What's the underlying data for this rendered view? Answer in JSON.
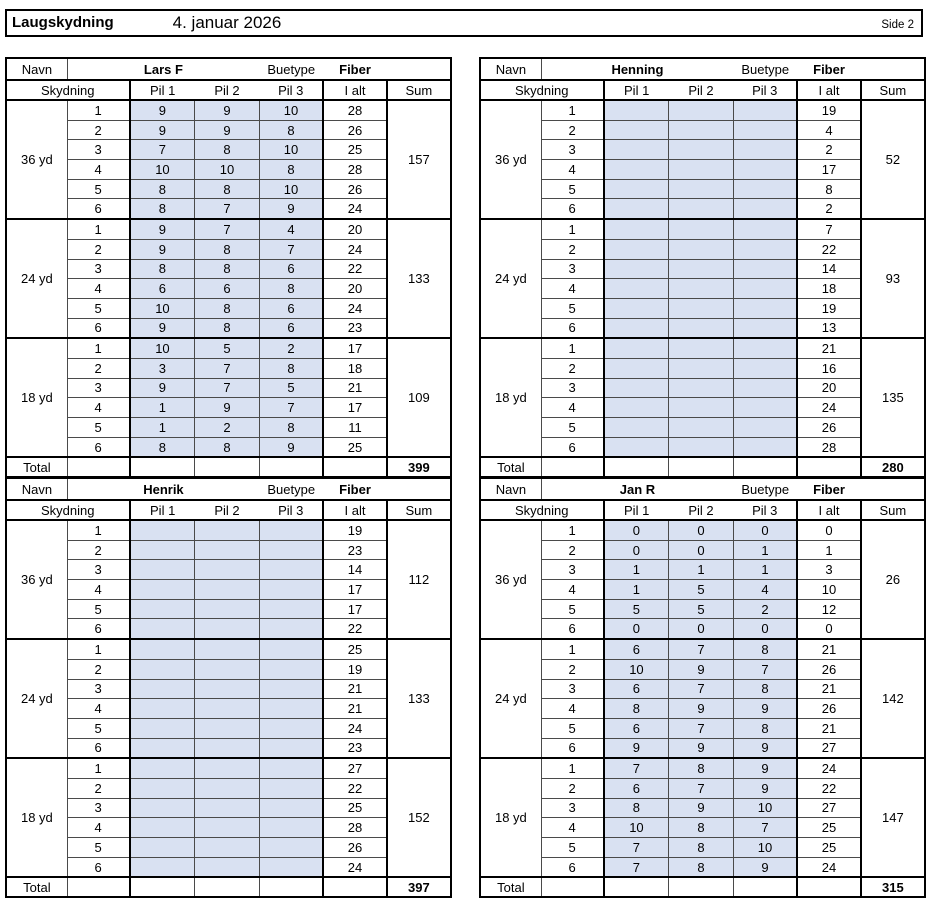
{
  "page": {
    "title": "Laugskydning",
    "date": "4. januar 2026",
    "page_label": "Side 2"
  },
  "labels": {
    "navn": "Navn",
    "buetype": "Buetype",
    "skydning": "Skydning",
    "pil1": "Pil 1",
    "pil2": "Pil 2",
    "pil3": "Pil 3",
    "ialt": "I alt",
    "sum": "Sum",
    "total": "Total"
  },
  "colors": {
    "highlight": "#d9e1f2",
    "border": "#000000"
  },
  "scorecards": [
    {
      "name": "Lars F",
      "buetype": "Fiber",
      "total": "399",
      "sections": [
        {
          "distance": "36 yd",
          "sum": "157",
          "rows": [
            {
              "skydning": "1",
              "pil1": "9",
              "pil2": "9",
              "pil3": "10",
              "ialt": "28"
            },
            {
              "skydning": "2",
              "pil1": "9",
              "pil2": "9",
              "pil3": "8",
              "ialt": "26"
            },
            {
              "skydning": "3",
              "pil1": "7",
              "pil2": "8",
              "pil3": "10",
              "ialt": "25"
            },
            {
              "skydning": "4",
              "pil1": "10",
              "pil2": "10",
              "pil3": "8",
              "ialt": "28"
            },
            {
              "skydning": "5",
              "pil1": "8",
              "pil2": "8",
              "pil3": "10",
              "ialt": "26"
            },
            {
              "skydning": "6",
              "pil1": "8",
              "pil2": "7",
              "pil3": "9",
              "ialt": "24"
            }
          ]
        },
        {
          "distance": "24 yd",
          "sum": "133",
          "rows": [
            {
              "skydning": "1",
              "pil1": "9",
              "pil2": "7",
              "pil3": "4",
              "ialt": "20"
            },
            {
              "skydning": "2",
              "pil1": "9",
              "pil2": "8",
              "pil3": "7",
              "ialt": "24"
            },
            {
              "skydning": "3",
              "pil1": "8",
              "pil2": "8",
              "pil3": "6",
              "ialt": "22"
            },
            {
              "skydning": "4",
              "pil1": "6",
              "pil2": "6",
              "pil3": "8",
              "ialt": "20"
            },
            {
              "skydning": "5",
              "pil1": "10",
              "pil2": "8",
              "pil3": "6",
              "ialt": "24"
            },
            {
              "skydning": "6",
              "pil1": "9",
              "pil2": "8",
              "pil3": "6",
              "ialt": "23"
            }
          ]
        },
        {
          "distance": "18 yd",
          "sum": "109",
          "rows": [
            {
              "skydning": "1",
              "pil1": "10",
              "pil2": "5",
              "pil3": "2",
              "ialt": "17"
            },
            {
              "skydning": "2",
              "pil1": "3",
              "pil2": "7",
              "pil3": "8",
              "ialt": "18"
            },
            {
              "skydning": "3",
              "pil1": "9",
              "pil2": "7",
              "pil3": "5",
              "ialt": "21"
            },
            {
              "skydning": "4",
              "pil1": "1",
              "pil2": "9",
              "pil3": "7",
              "ialt": "17"
            },
            {
              "skydning": "5",
              "pil1": "1",
              "pil2": "2",
              "pil3": "8",
              "ialt": "11"
            },
            {
              "skydning": "6",
              "pil1": "8",
              "pil2": "8",
              "pil3": "9",
              "ialt": "25"
            }
          ]
        }
      ]
    },
    {
      "name": "Henning",
      "buetype": "Fiber",
      "total": "280",
      "sections": [
        {
          "distance": "36 yd",
          "sum": "52",
          "rows": [
            {
              "skydning": "1",
              "pil1": "",
              "pil2": "",
              "pil3": "",
              "ialt": "19"
            },
            {
              "skydning": "2",
              "pil1": "",
              "pil2": "",
              "pil3": "",
              "ialt": "4"
            },
            {
              "skydning": "3",
              "pil1": "",
              "pil2": "",
              "pil3": "",
              "ialt": "2"
            },
            {
              "skydning": "4",
              "pil1": "",
              "pil2": "",
              "pil3": "",
              "ialt": "17"
            },
            {
              "skydning": "5",
              "pil1": "",
              "pil2": "",
              "pil3": "",
              "ialt": "8"
            },
            {
              "skydning": "6",
              "pil1": "",
              "pil2": "",
              "pil3": "",
              "ialt": "2"
            }
          ]
        },
        {
          "distance": "24 yd",
          "sum": "93",
          "rows": [
            {
              "skydning": "1",
              "pil1": "",
              "pil2": "",
              "pil3": "",
              "ialt": "7"
            },
            {
              "skydning": "2",
              "pil1": "",
              "pil2": "",
              "pil3": "",
              "ialt": "22"
            },
            {
              "skydning": "3",
              "pil1": "",
              "pil2": "",
              "pil3": "",
              "ialt": "14"
            },
            {
              "skydning": "4",
              "pil1": "",
              "pil2": "",
              "pil3": "",
              "ialt": "18"
            },
            {
              "skydning": "5",
              "pil1": "",
              "pil2": "",
              "pil3": "",
              "ialt": "19"
            },
            {
              "skydning": "6",
              "pil1": "",
              "pil2": "",
              "pil3": "",
              "ialt": "13"
            }
          ]
        },
        {
          "distance": "18 yd",
          "sum": "135",
          "rows": [
            {
              "skydning": "1",
              "pil1": "",
              "pil2": "",
              "pil3": "",
              "ialt": "21"
            },
            {
              "skydning": "2",
              "pil1": "",
              "pil2": "",
              "pil3": "",
              "ialt": "16"
            },
            {
              "skydning": "3",
              "pil1": "",
              "pil2": "",
              "pil3": "",
              "ialt": "20"
            },
            {
              "skydning": "4",
              "pil1": "",
              "pil2": "",
              "pil3": "",
              "ialt": "24"
            },
            {
              "skydning": "5",
              "pil1": "",
              "pil2": "",
              "pil3": "",
              "ialt": "26"
            },
            {
              "skydning": "6",
              "pil1": "",
              "pil2": "",
              "pil3": "",
              "ialt": "28"
            }
          ]
        }
      ]
    },
    {
      "name": "Henrik",
      "buetype": "Fiber",
      "total": "397",
      "sections": [
        {
          "distance": "36 yd",
          "sum": "112",
          "rows": [
            {
              "skydning": "1",
              "pil1": "",
              "pil2": "",
              "pil3": "",
              "ialt": "19"
            },
            {
              "skydning": "2",
              "pil1": "",
              "pil2": "",
              "pil3": "",
              "ialt": "23"
            },
            {
              "skydning": "3",
              "pil1": "",
              "pil2": "",
              "pil3": "",
              "ialt": "14"
            },
            {
              "skydning": "4",
              "pil1": "",
              "pil2": "",
              "pil3": "",
              "ialt": "17"
            },
            {
              "skydning": "5",
              "pil1": "",
              "pil2": "",
              "pil3": "",
              "ialt": "17"
            },
            {
              "skydning": "6",
              "pil1": "",
              "pil2": "",
              "pil3": "",
              "ialt": "22"
            }
          ]
        },
        {
          "distance": "24 yd",
          "sum": "133",
          "rows": [
            {
              "skydning": "1",
              "pil1": "",
              "pil2": "",
              "pil3": "",
              "ialt": "25"
            },
            {
              "skydning": "2",
              "pil1": "",
              "pil2": "",
              "pil3": "",
              "ialt": "19"
            },
            {
              "skydning": "3",
              "pil1": "",
              "pil2": "",
              "pil3": "",
              "ialt": "21"
            },
            {
              "skydning": "4",
              "pil1": "",
              "pil2": "",
              "pil3": "",
              "ialt": "21"
            },
            {
              "skydning": "5",
              "pil1": "",
              "pil2": "",
              "pil3": "",
              "ialt": "24"
            },
            {
              "skydning": "6",
              "pil1": "",
              "pil2": "",
              "pil3": "",
              "ialt": "23"
            }
          ]
        },
        {
          "distance": "18 yd",
          "sum": "152",
          "rows": [
            {
              "skydning": "1",
              "pil1": "",
              "pil2": "",
              "pil3": "",
              "ialt": "27"
            },
            {
              "skydning": "2",
              "pil1": "",
              "pil2": "",
              "pil3": "",
              "ialt": "22"
            },
            {
              "skydning": "3",
              "pil1": "",
              "pil2": "",
              "pil3": "",
              "ialt": "25"
            },
            {
              "skydning": "4",
              "pil1": "",
              "pil2": "",
              "pil3": "",
              "ialt": "28"
            },
            {
              "skydning": "5",
              "pil1": "",
              "pil2": "",
              "pil3": "",
              "ialt": "26"
            },
            {
              "skydning": "6",
              "pil1": "",
              "pil2": "",
              "pil3": "",
              "ialt": "24"
            }
          ]
        }
      ]
    },
    {
      "name": "Jan R",
      "buetype": "Fiber",
      "total": "315",
      "sections": [
        {
          "distance": "36 yd",
          "sum": "26",
          "rows": [
            {
              "skydning": "1",
              "pil1": "0",
              "pil2": "0",
              "pil3": "0",
              "ialt": "0"
            },
            {
              "skydning": "2",
              "pil1": "0",
              "pil2": "0",
              "pil3": "1",
              "ialt": "1"
            },
            {
              "skydning": "3",
              "pil1": "1",
              "pil2": "1",
              "pil3": "1",
              "ialt": "3"
            },
            {
              "skydning": "4",
              "pil1": "1",
              "pil2": "5",
              "pil3": "4",
              "ialt": "10"
            },
            {
              "skydning": "5",
              "pil1": "5",
              "pil2": "5",
              "pil3": "2",
              "ialt": "12"
            },
            {
              "skydning": "6",
              "pil1": "0",
              "pil2": "0",
              "pil3": "0",
              "ialt": "0"
            }
          ]
        },
        {
          "distance": "24 yd",
          "sum": "142",
          "rows": [
            {
              "skydning": "1",
              "pil1": "6",
              "pil2": "7",
              "pil3": "8",
              "ialt": "21"
            },
            {
              "skydning": "2",
              "pil1": "10",
              "pil2": "9",
              "pil3": "7",
              "ialt": "26"
            },
            {
              "skydning": "3",
              "pil1": "6",
              "pil2": "7",
              "pil3": "8",
              "ialt": "21"
            },
            {
              "skydning": "4",
              "pil1": "8",
              "pil2": "9",
              "pil3": "9",
              "ialt": "26"
            },
            {
              "skydning": "5",
              "pil1": "6",
              "pil2": "7",
              "pil3": "8",
              "ialt": "21"
            },
            {
              "skydning": "6",
              "pil1": "9",
              "pil2": "9",
              "pil3": "9",
              "ialt": "27"
            }
          ]
        },
        {
          "distance": "18 yd",
          "sum": "147",
          "rows": [
            {
              "skydning": "1",
              "pil1": "7",
              "pil2": "8",
              "pil3": "9",
              "ialt": "24"
            },
            {
              "skydning": "2",
              "pil1": "6",
              "pil2": "7",
              "pil3": "9",
              "ialt": "22"
            },
            {
              "skydning": "3",
              "pil1": "8",
              "pil2": "9",
              "pil3": "10",
              "ialt": "27"
            },
            {
              "skydning": "4",
              "pil1": "10",
              "pil2": "8",
              "pil3": "7",
              "ialt": "25"
            },
            {
              "skydning": "5",
              "pil1": "7",
              "pil2": "8",
              "pil3": "10",
              "ialt": "25"
            },
            {
              "skydning": "6",
              "pil1": "7",
              "pil2": "8",
              "pil3": "9",
              "ialt": "24"
            }
          ]
        }
      ]
    }
  ]
}
